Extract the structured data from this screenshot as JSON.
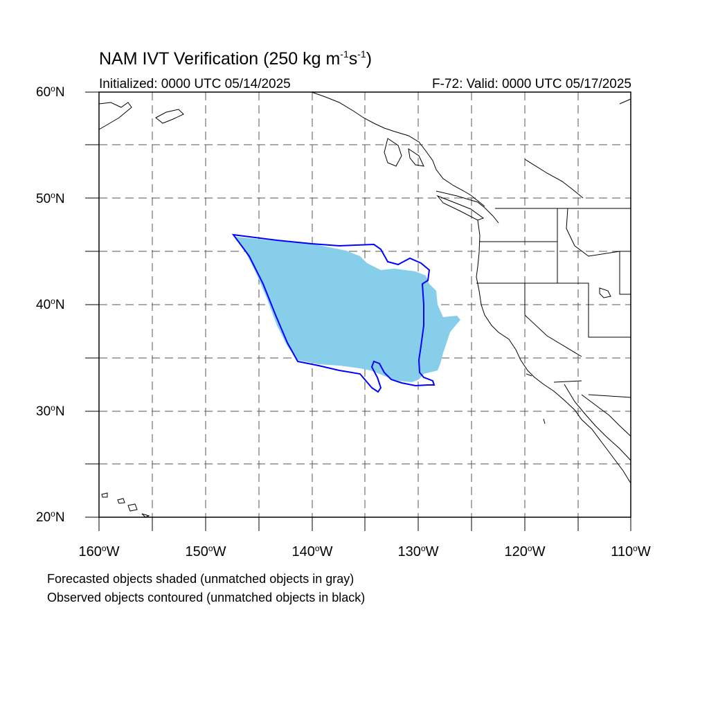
{
  "title": {
    "main": "NAM IVT Verification (250 kg m",
    "exp1": "-1",
    "mid": "s",
    "exp2": "-1",
    "end": ")"
  },
  "subtitle": {
    "initialized": "Initialized: 0000 UTC 05/14/2025",
    "valid": "F-72: Valid: 0000 UTC 05/17/2025"
  },
  "lat_labels": [
    {
      "deg": "60",
      "suffix": "N"
    },
    {
      "deg": "50",
      "suffix": "N"
    },
    {
      "deg": "40",
      "suffix": "N"
    },
    {
      "deg": "30",
      "suffix": "N"
    },
    {
      "deg": "20",
      "suffix": "N"
    }
  ],
  "lon_labels": [
    {
      "deg": "160",
      "suffix": "W"
    },
    {
      "deg": "150",
      "suffix": "W"
    },
    {
      "deg": "140",
      "suffix": "W"
    },
    {
      "deg": "130",
      "suffix": "W"
    },
    {
      "deg": "120",
      "suffix": "W"
    },
    {
      "deg": "110",
      "suffix": "W"
    }
  ],
  "degree_symbol": "o",
  "notes": {
    "forecast": "Forecasted objects shaded (unmatched objects in gray)",
    "observed": "Observed objects contoured (unmatched objects in black)"
  },
  "map": {
    "lon_range": [
      -160,
      -110
    ],
    "lat_range": [
      20,
      60
    ],
    "gridline_spacing_deg": 5,
    "colors": {
      "forecast_fill": "#87ceeb",
      "observed_contour": "#0000ff",
      "coastline": "#000000",
      "gridlines": "#555555"
    }
  }
}
